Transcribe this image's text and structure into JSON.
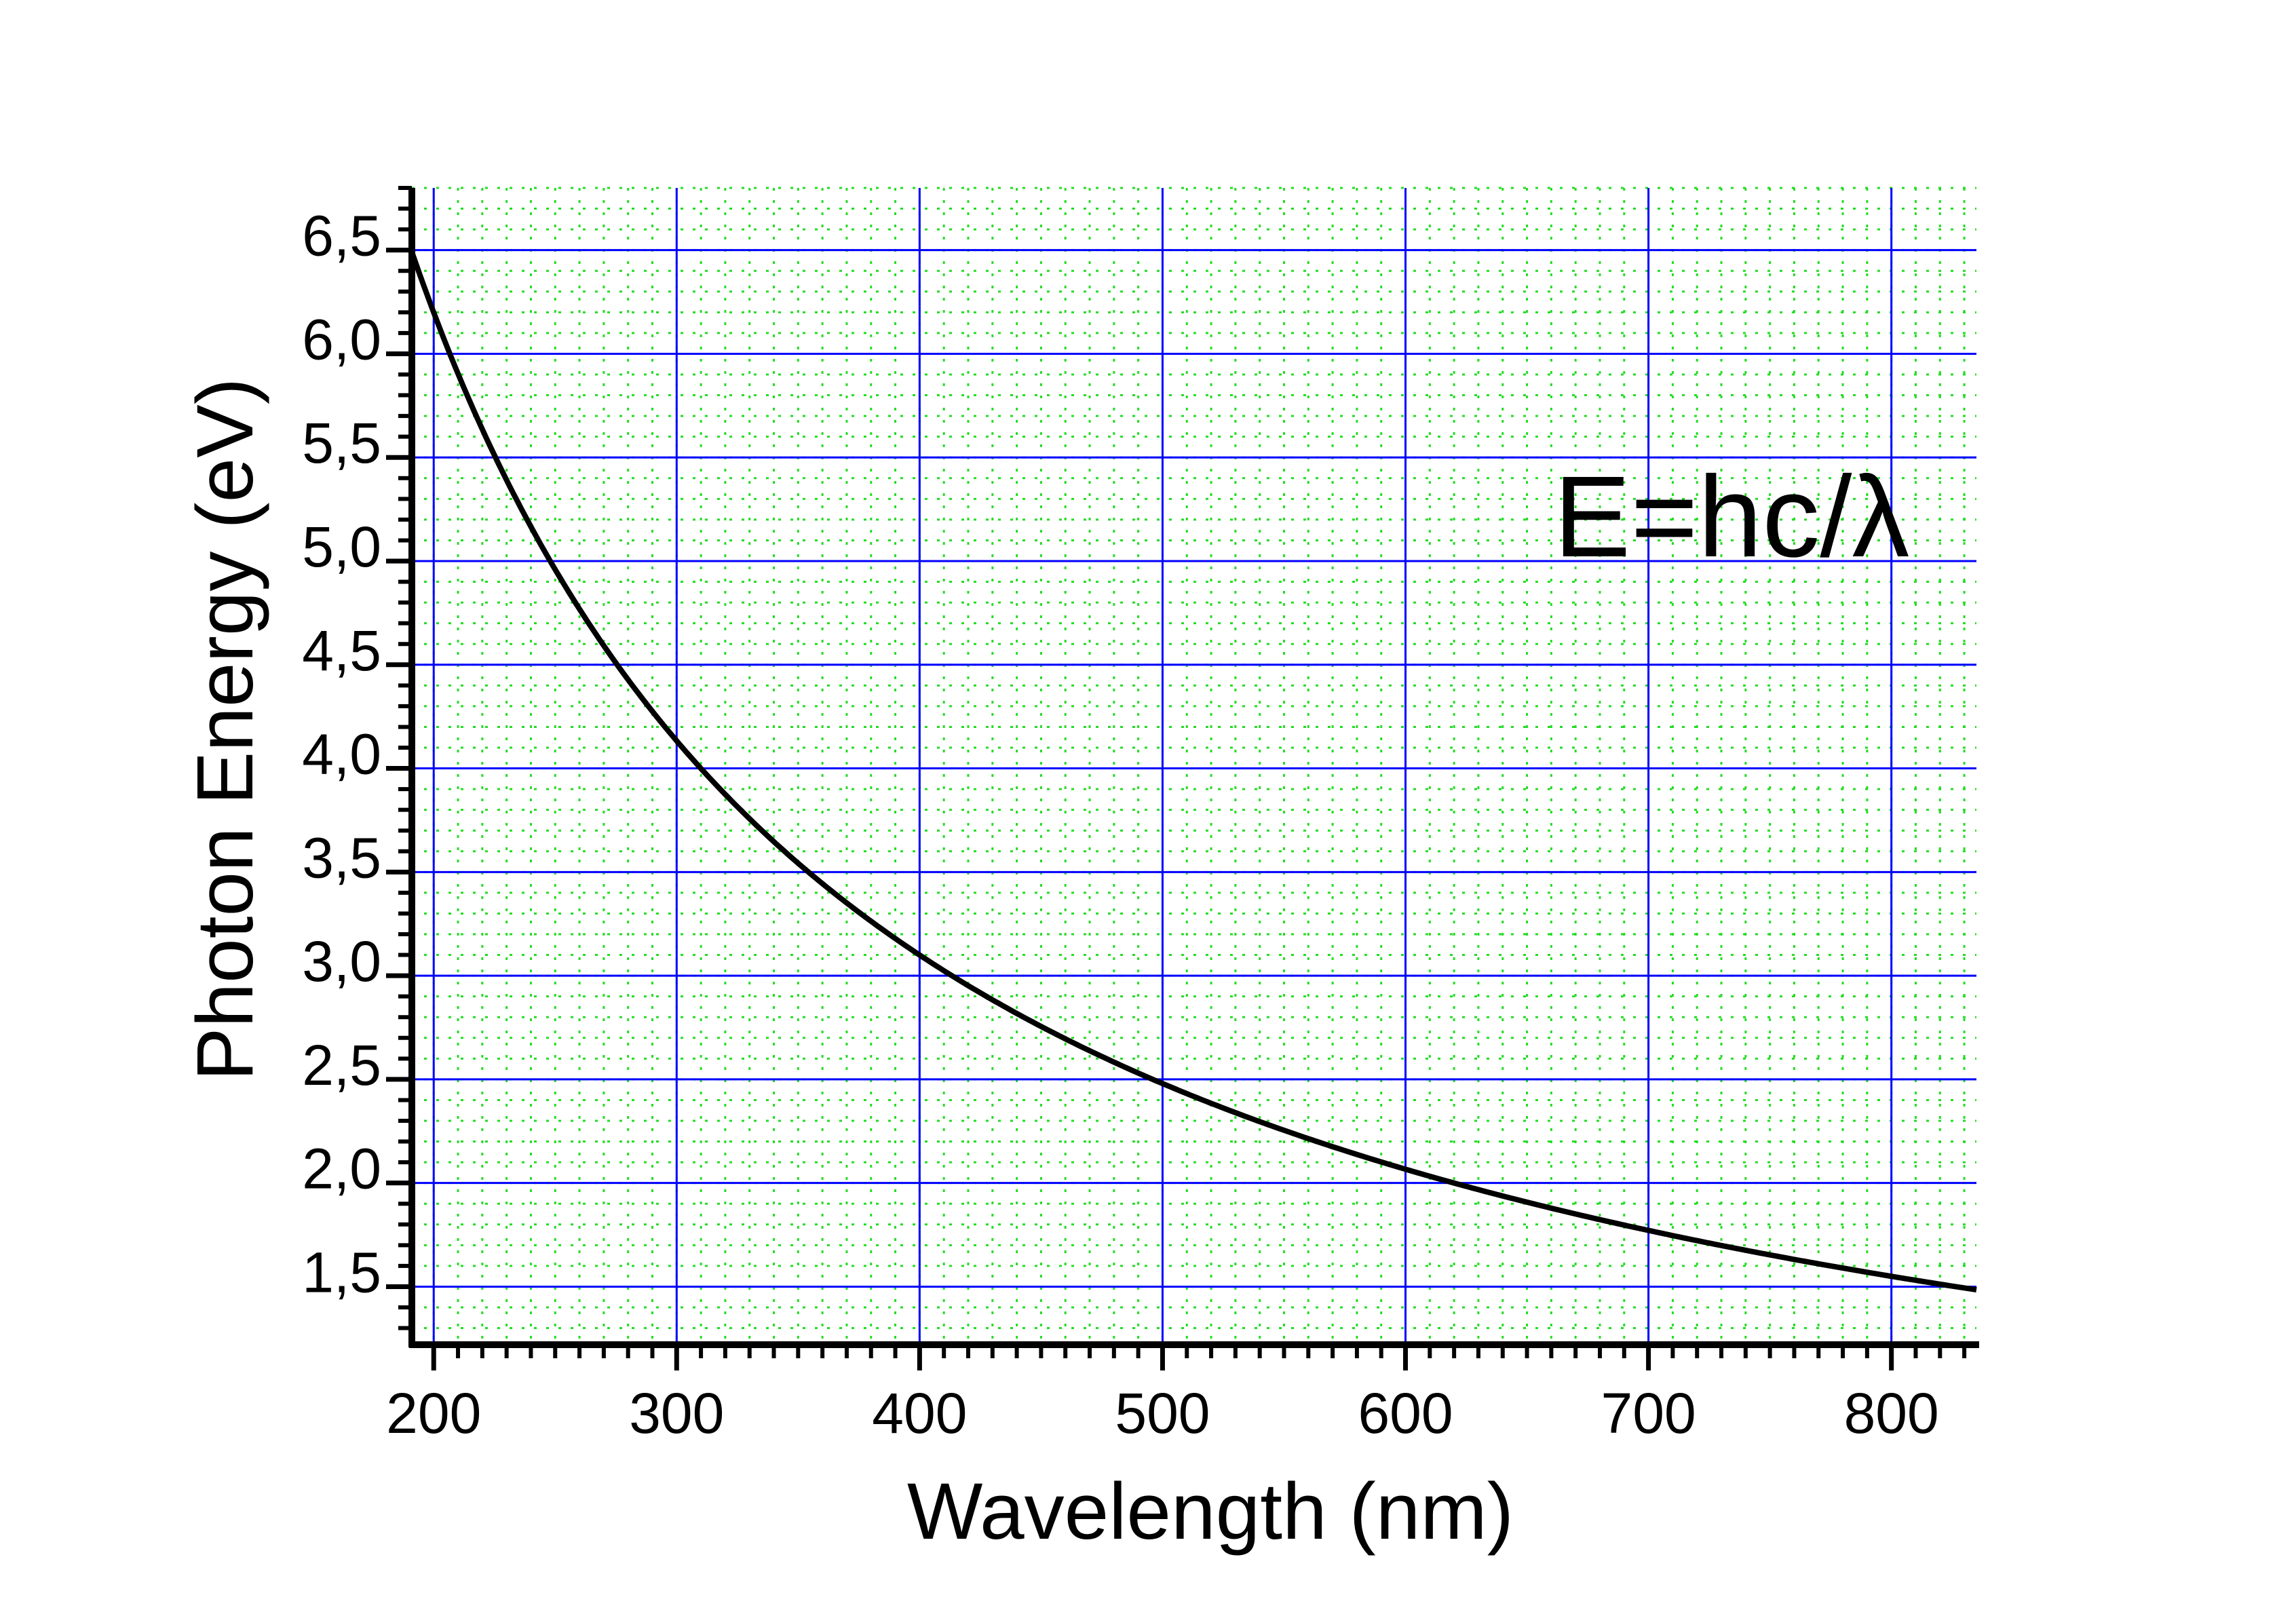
{
  "chart_data": {
    "type": "line",
    "title": "",
    "xlabel": "Wavelength (nm)",
    "ylabel": "Photon Energy (eV)",
    "annotation": "E=hc/λ",
    "xlim": [
      191,
      835
    ],
    "ylim": [
      1.22,
      6.8
    ],
    "xticks": [
      200,
      300,
      400,
      500,
      600,
      700,
      800
    ],
    "xtick_labels": [
      "200",
      "300",
      "400",
      "500",
      "600",
      "700",
      "800"
    ],
    "yticks": [
      1.5,
      2.0,
      2.5,
      3.0,
      3.5,
      4.0,
      4.5,
      5.0,
      5.5,
      6.0,
      6.5
    ],
    "ytick_labels": [
      "1,5",
      "2,0",
      "2,5",
      "3,0",
      "3,5",
      "4,0",
      "4,5",
      "5,0",
      "5,5",
      "6,0",
      "6,5"
    ],
    "x_minor_step": 10,
    "y_minor_step": 0.1,
    "grid": true,
    "series": [
      {
        "name": "E=hc/λ",
        "function": "1239.84/x",
        "x_range": [
          191,
          835
        ],
        "color": "#000000"
      }
    ],
    "colors": {
      "major_grid": "#0000ff",
      "minor_grid": "#22dd22",
      "axis": "#000000",
      "curve": "#000000"
    }
  }
}
